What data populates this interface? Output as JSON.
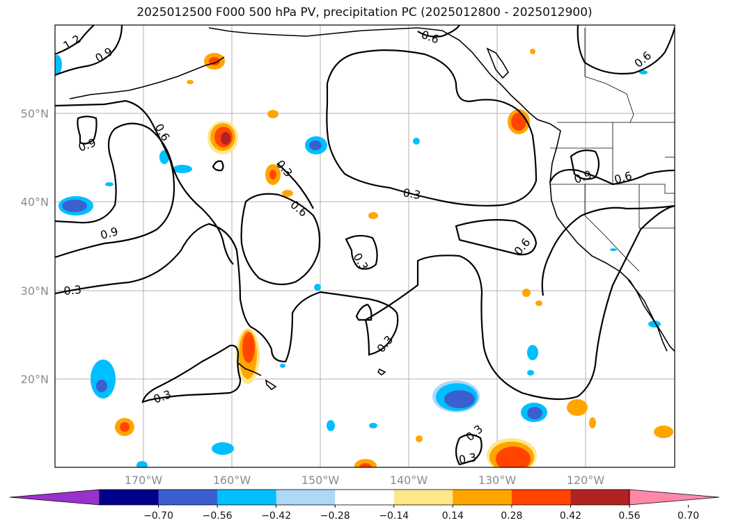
{
  "title": "2025012500 F000 500 hPa PV, precipitation PC (2025012800 - 2025012900)",
  "lat_labels": [
    "50°N",
    "40°N",
    "30°N",
    "20°N"
  ],
  "lon_labels": [
    "170°W",
    "160°W",
    "150°W",
    "140°W",
    "130°W",
    "120°W"
  ],
  "contour_labels": [
    "1.2",
    "0.9",
    "0.6",
    "0.9",
    "0.9",
    "0.3",
    "0.3",
    "0.6",
    "0.3",
    "0.3",
    "0.6",
    "0.3",
    "0.9",
    "0.6",
    "0.6",
    "0.6",
    "0.3",
    "0.3",
    "0.3"
  ],
  "colorbar": {
    "ticks": [
      "−0.70",
      "−0.56",
      "−0.42",
      "−0.28",
      "−0.14",
      "0.14",
      "0.28",
      "0.42",
      "0.56",
      "0.70"
    ],
    "colors": [
      "#9932cc",
      "#00008b",
      "#3b5fcf",
      "#00bfff",
      "#add8f8",
      "#ffffff",
      "#fde78a",
      "#ffa500",
      "#ff4500",
      "#b22222",
      "#ff88aa"
    ]
  }
}
